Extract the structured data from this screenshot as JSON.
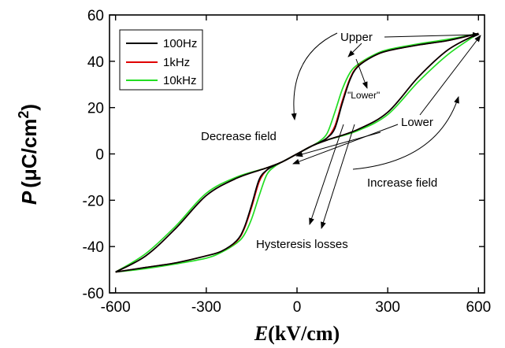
{
  "chart_data": {
    "type": "line",
    "xlabel_main": "E",
    "xlabel_unit": "(kV/cm)",
    "ylabel_main": "P",
    "ylabel_unit": "(μC/cm",
    "ylabel_sup": "2",
    "ylabel_close": ")",
    "xlim": [
      -620,
      620
    ],
    "ylim": [
      -60,
      60
    ],
    "xticks": [
      -600,
      -300,
      0,
      300,
      600
    ],
    "yticks": [
      -60,
      -40,
      -20,
      0,
      20,
      40,
      60
    ],
    "grid": false,
    "legend_position": "top-left",
    "colors": {
      "100Hz": "#000000",
      "1kHz": "#e00000",
      "10kHz": "#22dd22"
    },
    "series": [
      {
        "name": "100Hz",
        "color": "#000000",
        "upper_branch": {
          "x": [
            600,
            500,
            400,
            300,
            250,
            200,
            175,
            150,
            125,
            100,
            75,
            50,
            0,
            -50,
            -100,
            -200,
            -300,
            -400,
            -500,
            -600
          ],
          "y": [
            52,
            49,
            47,
            44.5,
            42,
            37.5,
            32,
            22,
            11,
            7,
            5,
            3.5,
            0,
            -3.5,
            -6,
            -10.5,
            -18,
            -32,
            -44,
            -51
          ]
        },
        "lower_branch": {
          "x": [
            -600,
            -500,
            -400,
            -300,
            -250,
            -200,
            -175,
            -150,
            -125,
            -100,
            -75,
            -50,
            0,
            50,
            100,
            200,
            300,
            400,
            500,
            600
          ],
          "y": [
            -51,
            -49,
            -47,
            -44,
            -42,
            -37.5,
            -32,
            -22,
            -11,
            -7,
            -5,
            -3.5,
            0,
            3.5,
            6,
            10.5,
            18,
            33,
            45,
            52
          ]
        }
      },
      {
        "name": "1kHz",
        "color": "#e00000",
        "upper_branch": {
          "x": [
            600,
            500,
            400,
            300,
            250,
            200,
            175,
            150,
            125,
            100,
            75,
            50,
            0,
            -50,
            -100,
            -200,
            -300,
            -400,
            -500,
            -600
          ],
          "y": [
            52,
            49,
            47,
            44.5,
            42,
            37.8,
            32.5,
            23,
            12,
            7,
            5,
            3.5,
            0,
            -3.5,
            -6,
            -10.5,
            -18,
            -32,
            -44,
            -51
          ]
        },
        "lower_branch": {
          "x": [
            -600,
            -500,
            -400,
            -300,
            -250,
            -200,
            -175,
            -150,
            -125,
            -100,
            -75,
            -50,
            0,
            50,
            100,
            200,
            300,
            400,
            500,
            600
          ],
          "y": [
            -51,
            -49,
            -47,
            -44,
            -42,
            -37.8,
            -32.5,
            -23,
            -12,
            -7,
            -5,
            -3.5,
            0,
            3.5,
            6,
            10.5,
            18,
            33,
            45,
            52
          ]
        }
      },
      {
        "name": "10kHz",
        "color": "#22dd22",
        "upper_branch": {
          "x": [
            600,
            500,
            400,
            300,
            250,
            200,
            175,
            150,
            125,
            100,
            75,
            50,
            0,
            -50,
            -100,
            -200,
            -300,
            -400,
            -500,
            -600
          ],
          "y": [
            52,
            49.5,
            47.5,
            45,
            42.5,
            38.5,
            35,
            28,
            18,
            9,
            5.5,
            3.5,
            0,
            -3.5,
            -6,
            -10,
            -17,
            -31,
            -43,
            -51
          ]
        },
        "lower_branch": {
          "x": [
            -600,
            -500,
            -400,
            -300,
            -250,
            -200,
            -175,
            -150,
            -125,
            -100,
            -75,
            -50,
            0,
            50,
            100,
            200,
            300,
            400,
            500,
            600
          ],
          "y": [
            -51,
            -49.5,
            -47.5,
            -45,
            -42.5,
            -38.5,
            -35,
            -28,
            -18,
            -9,
            -5.5,
            -3.5,
            0,
            3.5,
            6,
            10,
            17,
            31,
            43,
            52
          ]
        }
      }
    ],
    "annotations": {
      "upper": "Upper",
      "lower_quoted": "\"Lower\"",
      "lower": "Lower",
      "decrease_field": "Decrease field",
      "increase_field": "Increase field",
      "hysteresis_losses": "Hysteresis losses"
    }
  }
}
